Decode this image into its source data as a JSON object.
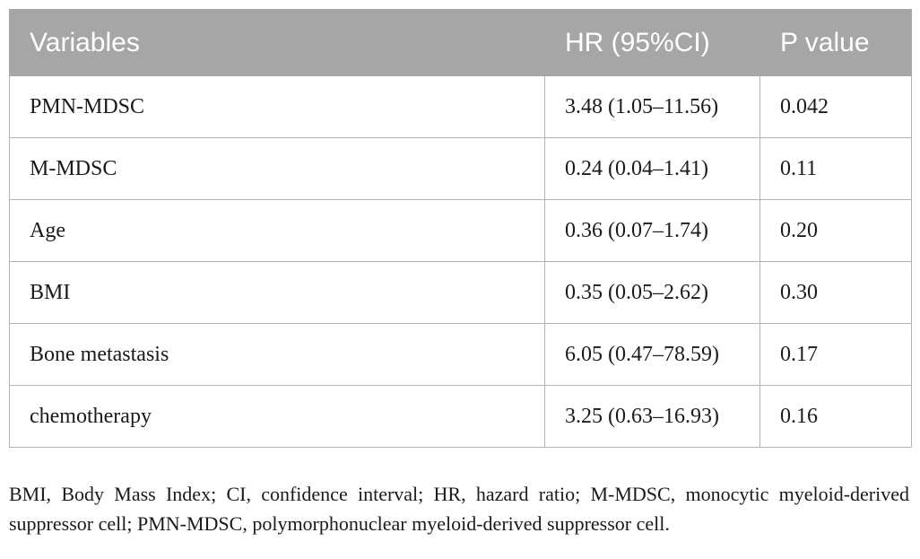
{
  "table": {
    "headers": [
      "Variables",
      "HR (95%CI)",
      "P value"
    ],
    "rows": [
      [
        "PMN-MDSC",
        "3.48 (1.05–11.56)",
        "0.042"
      ],
      [
        "M-MDSC",
        "0.24 (0.04–1.41)",
        "0.11"
      ],
      [
        "Age",
        "0.36 (0.07–1.74)",
        "0.20"
      ],
      [
        "BMI",
        "0.35 (0.05–2.62)",
        "0.30"
      ],
      [
        "Bone metastasis",
        "6.05 (0.47–78.59)",
        "0.17"
      ],
      [
        "chemotherapy",
        "3.25 (0.63–16.93)",
        "0.16"
      ]
    ]
  },
  "footnote": "BMI, Body Mass Index; CI, confidence interval; HR, hazard ratio; M-MDSC, monocytic myeloid-derived suppressor cell; PMN-MDSC, polymorphonuclear myeloid-derived suppressor cell."
}
